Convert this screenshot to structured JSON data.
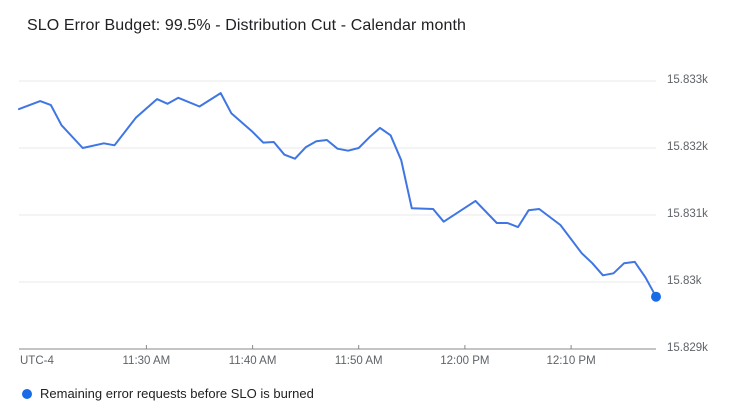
{
  "chart_data": {
    "type": "line",
    "title": "SLO Error Budget: 99.5% - Distribution Cut - Calendar month",
    "timezone_label": "UTC-4",
    "y_axis_side": "right",
    "grid": true,
    "legend_position": "bottom-left",
    "x_ticks": [
      "11:30 AM",
      "11:40 AM",
      "11:50 AM",
      "12:00 PM",
      "12:10 PM"
    ],
    "y_ticks": [
      {
        "label": "15.833k",
        "value": 15833
      },
      {
        "label": "15.832k",
        "value": 15832
      },
      {
        "label": "15.831k",
        "value": 15831
      },
      {
        "label": "15.83k",
        "value": 15830
      },
      {
        "label": "15.829k",
        "value": 15829
      }
    ],
    "ylim": [
      15829,
      15833.3
    ],
    "series": [
      {
        "name": "Remaining error requests before SLO is burned",
        "color": "#3f76e3",
        "point_color": "#1a6be8",
        "end_point_marker": true,
        "points": [
          [
            "11:18 AM",
            15832.58
          ],
          [
            "11:20 AM",
            15832.7
          ],
          [
            "11:21 AM",
            15832.64
          ],
          [
            "11:22 AM",
            15832.34
          ],
          [
            "11:24 AM",
            15832.0
          ],
          [
            "11:26 AM",
            15832.07
          ],
          [
            "11:27 AM",
            15832.04
          ],
          [
            "11:29 AM",
            15832.45
          ],
          [
            "11:31 AM",
            15832.73
          ],
          [
            "11:32 AM",
            15832.66
          ],
          [
            "11:33 AM",
            15832.75
          ],
          [
            "11:35 AM",
            15832.62
          ],
          [
            "11:37 AM",
            15832.82
          ],
          [
            "11:38 AM",
            15832.52
          ],
          [
            "11:40 AM",
            15832.24
          ],
          [
            "11:41 AM",
            15832.08
          ],
          [
            "11:42 AM",
            15832.09
          ],
          [
            "11:43 AM",
            15831.9
          ],
          [
            "11:44 AM",
            15831.84
          ],
          [
            "11:45 AM",
            15832.01
          ],
          [
            "11:46 AM",
            15832.1
          ],
          [
            "11:47 AM",
            15832.12
          ],
          [
            "11:48 AM",
            15831.99
          ],
          [
            "11:49 AM",
            15831.96
          ],
          [
            "11:50 AM",
            15832.0
          ],
          [
            "11:51 AM",
            15832.16
          ],
          [
            "11:52 AM",
            15832.3
          ],
          [
            "11:53 AM",
            15832.19
          ],
          [
            "11:54 AM",
            15831.82
          ],
          [
            "11:55 AM",
            15831.1
          ],
          [
            "11:57 AM",
            15831.09
          ],
          [
            "11:58 AM",
            15830.9
          ],
          [
            "12:01 PM",
            15831.21
          ],
          [
            "12:03 PM",
            15830.88
          ],
          [
            "12:04 PM",
            15830.88
          ],
          [
            "12:05 PM",
            15830.82
          ],
          [
            "12:06 PM",
            15831.07
          ],
          [
            "12:07 PM",
            15831.09
          ],
          [
            "12:09 PM",
            15830.85
          ],
          [
            "12:11 PM",
            15830.43
          ],
          [
            "12:12 PM",
            15830.28
          ],
          [
            "12:13 PM",
            15830.1
          ],
          [
            "12:14 PM",
            15830.13
          ],
          [
            "12:15 PM",
            15830.28
          ],
          [
            "12:16 PM",
            15830.3
          ],
          [
            "12:17 PM",
            15830.07
          ],
          [
            "12:18 PM",
            15829.78
          ]
        ]
      }
    ],
    "legend": [
      {
        "label": "Remaining error requests before SLO is burned",
        "color": "#1a6be8"
      }
    ]
  },
  "colors": {
    "series_line": "#3f76e3",
    "series_point": "#1a6be8",
    "gridline": "#e8e8e8",
    "axis_line": "#888888",
    "axis_text": "#5f6368",
    "title_text": "#202124"
  }
}
